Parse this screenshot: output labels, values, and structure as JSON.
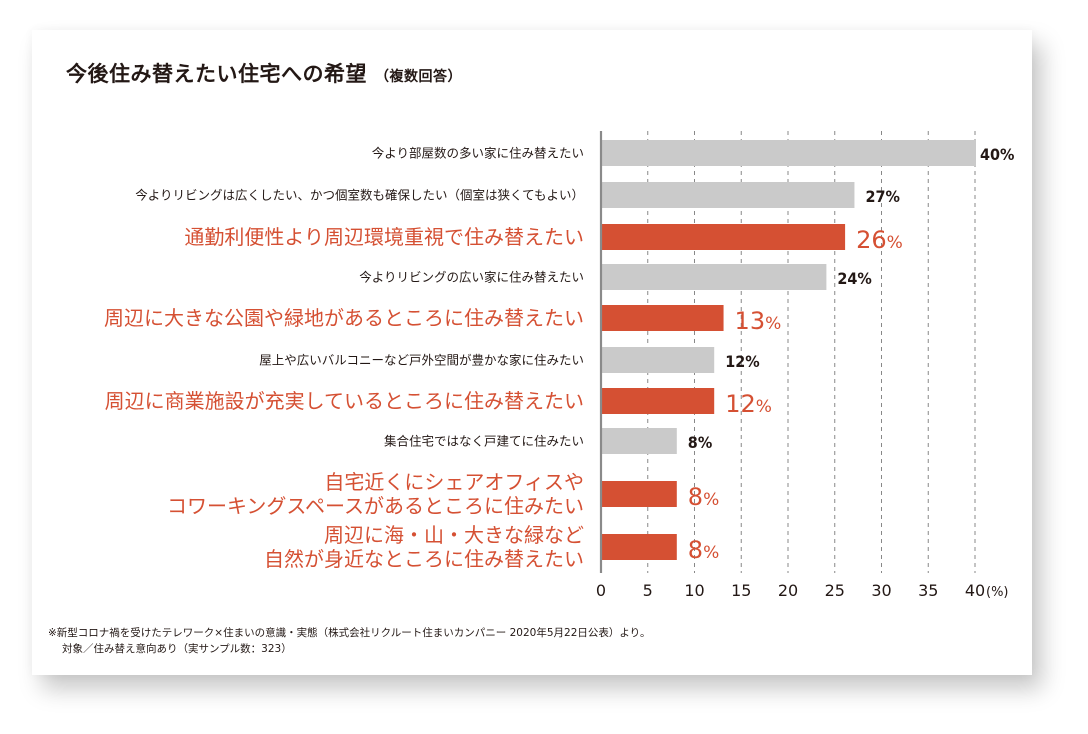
{
  "header": {
    "title": "今後住み替えたい住宅への希望",
    "subtitle": "（複数回答）"
  },
  "colors": {
    "highlight": "#d55033",
    "normal_bar": "#cacaca",
    "text": "#231815",
    "axis": "#8a8a8a",
    "grid": "#888888"
  },
  "chart_data": {
    "type": "bar",
    "orientation": "horizontal",
    "title": "今後住み替えたい住宅への希望（複数回答）",
    "xlabel": "(%)",
    "ylabel": "",
    "xlim": [
      0,
      40
    ],
    "x_ticks": [
      "0",
      "5",
      "10",
      "15",
      "20",
      "25",
      "30",
      "35",
      "40"
    ],
    "x_unit": "(%)",
    "grid": "vertical dashed",
    "legend": "none",
    "categories": [
      {
        "lines": [
          "今より部屋数の多い家に住み替えたい"
        ],
        "value": 40,
        "label": "40%",
        "highlight": false
      },
      {
        "lines": [
          "今よりリビングは広くしたい、かつ個室数も確保したい（個室は狭くてもよい）"
        ],
        "value": 27,
        "label": "27%",
        "highlight": false
      },
      {
        "lines": [
          "通勤利便性より周辺環境重視で住み替えたい"
        ],
        "value": 26,
        "label": "26%",
        "highlight": true
      },
      {
        "lines": [
          "今よりリビングの広い家に住み替えたい"
        ],
        "value": 24,
        "label": "24%",
        "highlight": false
      },
      {
        "lines": [
          "周辺に大きな公園や緑地があるところに住み替えたい"
        ],
        "value": 13,
        "label": "13%",
        "highlight": true
      },
      {
        "lines": [
          "屋上や広いバルコニーなど戸外空間が豊かな家に住みたい"
        ],
        "value": 12,
        "label": "12%",
        "highlight": false
      },
      {
        "lines": [
          "周辺に商業施設が充実しているところに住み替えたい"
        ],
        "value": 12,
        "label": "12%",
        "highlight": true
      },
      {
        "lines": [
          "集合住宅ではなく戸建てに住みたい"
        ],
        "value": 8,
        "label": "8%",
        "highlight": false
      },
      {
        "lines": [
          "自宅近くにシェアオフィスや",
          "コワーキングスペースがあるところに住みたい"
        ],
        "value": 8,
        "label": "8%",
        "highlight": true
      },
      {
        "lines": [
          "周辺に海・山・大きな緑など",
          "自然が身近なところに住み替えたい"
        ],
        "value": 8,
        "label": "8%",
        "highlight": true
      }
    ]
  },
  "footnote": {
    "line1": "※新型コロナ禍を受けたテレワーク×住まいの意識・実態（株式会社リクルート住まいカンパニー 2020年5月22日公表）より。",
    "line2": "対象／住み替え意向あり（実サンプル数：323）"
  }
}
